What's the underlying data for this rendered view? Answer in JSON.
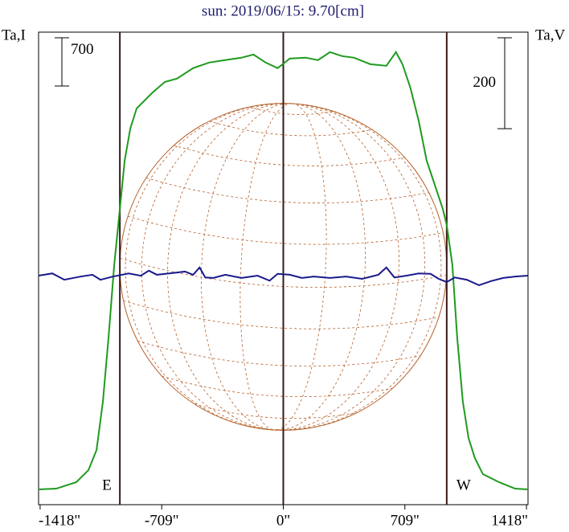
{
  "chart_data": {
    "type": "line",
    "title": "sun: 2019/06/15: 9.70[cm]",
    "y_label": "Ta,I",
    "y2_label": "Ta,V",
    "xlim": [
      -1427,
      1427
    ],
    "xticks": [
      {
        "value": -1418,
        "label": "-1418\""
      },
      {
        "value": -709,
        "label": "-709\""
      },
      {
        "value": 0,
        "label": "0\""
      },
      {
        "value": 709,
        "label": "709\""
      },
      {
        "value": 1418,
        "label": "1418\""
      }
    ],
    "ylim": [
      0,
      6860
    ],
    "y2lim": [
      -504,
      536
    ],
    "vlines": [
      -953,
      0,
      953
    ],
    "limb_labels": [
      "E",
      "W"
    ],
    "scale_bars": [
      {
        "value": 700,
        "axis": "y"
      },
      {
        "value": 200,
        "axis": "y2"
      }
    ],
    "series": [
      {
        "color": "#1f9a1f",
        "x": [
          -1427,
          -1324,
          -1207,
          -1136,
          -1089,
          -1052,
          -1019,
          -986,
          -953,
          -925,
          -892,
          -855,
          -808,
          -761,
          -690,
          -620,
          -526,
          -432,
          -338,
          -244,
          -174,
          -103,
          -33,
          38,
          131,
          202,
          272,
          343,
          413,
          507,
          601,
          657,
          695,
          742,
          789,
          836,
          883,
          930,
          953,
          986,
          1014,
          1047,
          1080,
          1117,
          1164,
          1258,
          1352,
          1427
        ],
        "values": [
          222,
          233,
          327,
          502,
          793,
          1494,
          2427,
          3478,
          4294,
          4995,
          5462,
          5753,
          5870,
          5987,
          6138,
          6185,
          6337,
          6419,
          6454,
          6489,
          6535,
          6419,
          6337,
          6477,
          6489,
          6454,
          6570,
          6512,
          6489,
          6395,
          6372,
          6570,
          6395,
          6045,
          5578,
          4995,
          4645,
          4294,
          4061,
          3478,
          2427,
          1494,
          969,
          677,
          443,
          327,
          233,
          222
        ]
      },
      {
        "color": "#1a1a8c",
        "axis": "y2",
        "x": [
          -1427,
          -1347,
          -1277,
          -1183,
          -1113,
          -1066,
          -995,
          -901,
          -831,
          -784,
          -737,
          -667,
          -573,
          -526,
          -488,
          -455,
          -408,
          -338,
          -244,
          -150,
          -80,
          -33,
          38,
          108,
          178,
          272,
          366,
          460,
          554,
          601,
          648,
          718,
          789,
          859,
          906,
          953,
          1000,
          1070,
          1141,
          1211,
          1282,
          1352,
          1427
        ],
        "values": [
          0,
          5,
          -9,
          -2,
          2,
          -9,
          -2,
          5,
          0,
          11,
          2,
          5,
          9,
          2,
          18,
          -4,
          -5,
          2,
          -5,
          0,
          -11,
          4,
          2,
          -5,
          -2,
          -5,
          -2,
          -7,
          2,
          18,
          -4,
          0,
          5,
          4,
          -7,
          -14,
          -4,
          -9,
          -21,
          -12,
          -5,
          -2,
          0
        ]
      }
    ]
  }
}
